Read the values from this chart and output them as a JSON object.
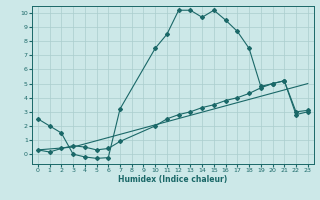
{
  "xlabel": "Humidex (Indice chaleur)",
  "bg_color": "#cce8e8",
  "grid_color": "#aacece",
  "line_color": "#1a6868",
  "xlim": [
    -0.5,
    23.5
  ],
  "ylim": [
    -0.7,
    10.5
  ],
  "xticks": [
    0,
    1,
    2,
    3,
    4,
    5,
    6,
    7,
    8,
    9,
    10,
    11,
    12,
    13,
    14,
    15,
    16,
    17,
    18,
    19,
    20,
    21,
    22,
    23
  ],
  "yticks": [
    0,
    1,
    2,
    3,
    4,
    5,
    6,
    7,
    8,
    9,
    10
  ],
  "line1_x": [
    0,
    1,
    2,
    3,
    4,
    5,
    6,
    7,
    10,
    11,
    12,
    13,
    14,
    15,
    16,
    17,
    18,
    19,
    20,
    21,
    22,
    23
  ],
  "line1_y": [
    2.5,
    2.0,
    1.5,
    0.0,
    -0.2,
    -0.3,
    -0.25,
    3.2,
    7.5,
    8.5,
    10.2,
    10.2,
    9.7,
    10.2,
    9.5,
    8.7,
    7.5,
    4.8,
    5.0,
    5.2,
    3.0,
    3.1
  ],
  "line2_x": [
    0,
    3,
    23
  ],
  "line2_y": [
    0.3,
    0.5,
    5.0
  ],
  "line3_x": [
    0,
    1,
    2,
    3,
    4,
    5,
    6,
    7,
    10,
    11,
    12,
    13,
    14,
    15,
    16,
    17,
    18,
    19,
    20,
    21,
    22,
    23
  ],
  "line3_y": [
    0.3,
    0.15,
    0.4,
    0.6,
    0.5,
    0.3,
    0.4,
    0.9,
    2.0,
    2.5,
    2.8,
    3.0,
    3.3,
    3.5,
    3.8,
    4.0,
    4.3,
    4.7,
    5.0,
    5.2,
    2.8,
    3.0
  ]
}
